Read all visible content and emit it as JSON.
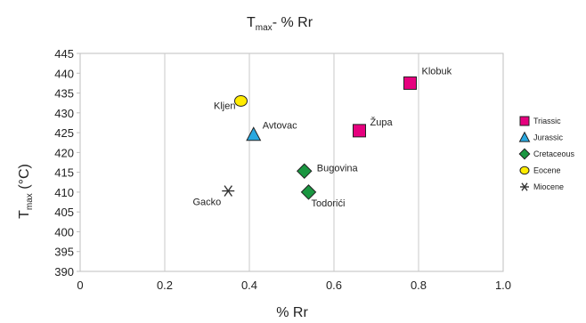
{
  "chart_data": {
    "type": "scatter",
    "title": {
      "main": "T",
      "sub": "max",
      "rest": "- % Rr"
    },
    "xlabel": "% Rr",
    "ylabel": {
      "main": "T",
      "sub": "max",
      "rest": " (°C)"
    },
    "xlim": [
      0,
      1.0
    ],
    "ylim": [
      390,
      445
    ],
    "xticks": [
      "0",
      "0.2",
      "0.4",
      "0.6",
      "0.8",
      "1.0"
    ],
    "yticks": [
      "390",
      "395",
      "400",
      "405",
      "410",
      "415",
      "420",
      "425",
      "430",
      "435",
      "440",
      "445"
    ],
    "grid": "vertical",
    "legend_position": "right",
    "series": [
      {
        "name": "Triassic",
        "marker": "square",
        "color": "#e6007e",
        "points": [
          {
            "label": "Klobuk",
            "x": 0.78,
            "y": 437.5
          },
          {
            "label": "Župa",
            "x": 0.66,
            "y": 425.5
          }
        ]
      },
      {
        "name": "Jurassic",
        "marker": "triangle",
        "color": "#29a8e0",
        "points": [
          {
            "label": "Avtovac",
            "x": 0.41,
            "y": 424.5
          }
        ]
      },
      {
        "name": "Cretaceous",
        "marker": "diamond",
        "color": "#1a9641",
        "points": [
          {
            "label": "Bugovina",
            "x": 0.53,
            "y": 415.3
          },
          {
            "label": "Todorići",
            "x": 0.54,
            "y": 410
          }
        ]
      },
      {
        "name": "Eocene",
        "marker": "circle",
        "color": "#ffeb00",
        "points": [
          {
            "label": "Kljen",
            "x": 0.38,
            "y": 433
          }
        ]
      },
      {
        "name": "Miocene",
        "marker": "asterisk",
        "color": "#333333",
        "points": [
          {
            "label": "Gacko",
            "x": 0.35,
            "y": 410.3
          }
        ]
      }
    ]
  }
}
